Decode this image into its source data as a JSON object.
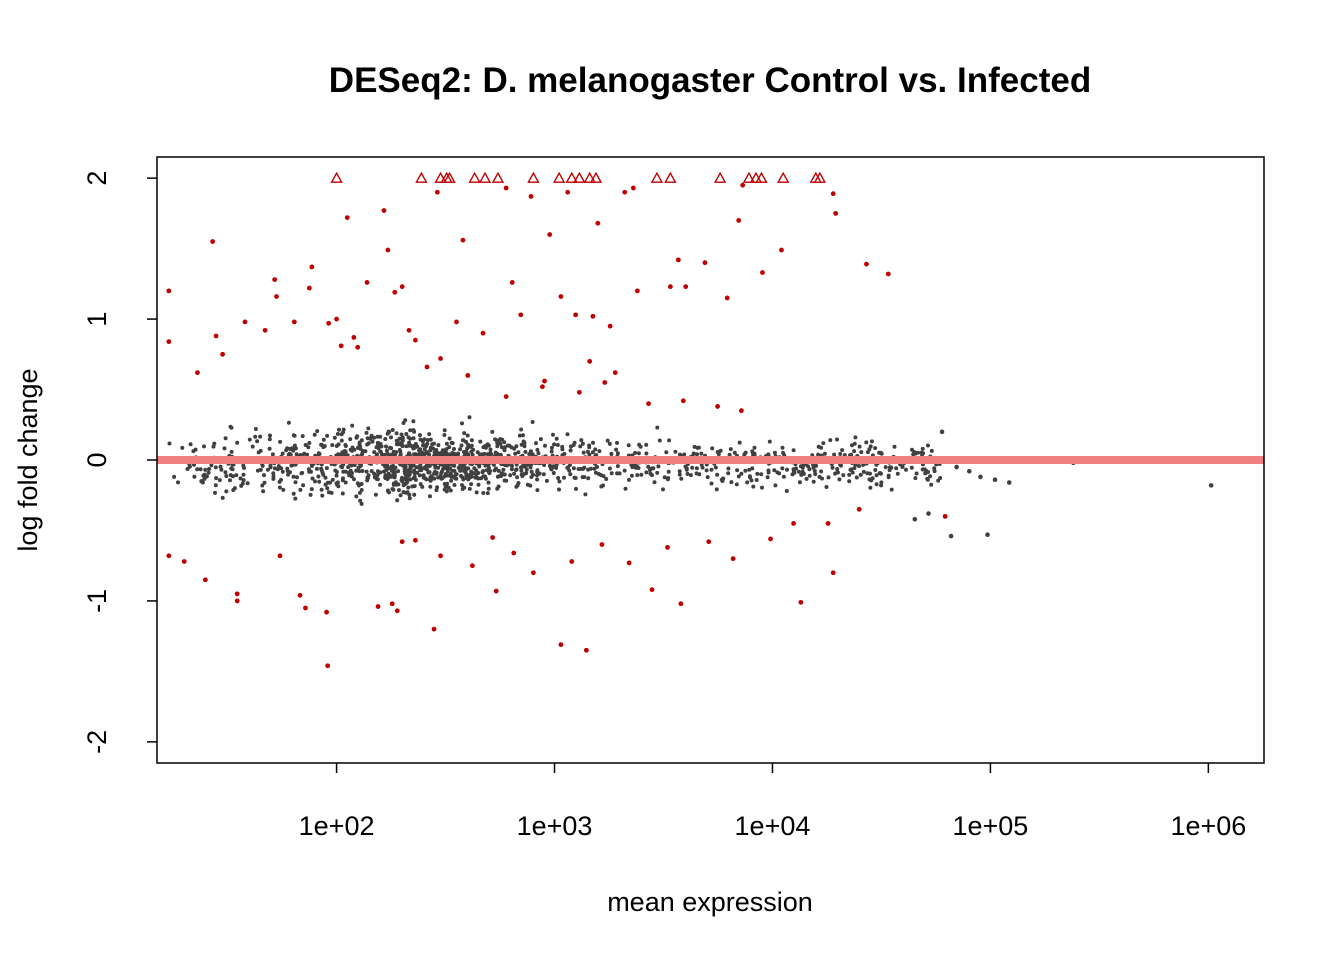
{
  "chart_data": {
    "type": "scatter",
    "title": "DESeq2: D. melanogaster Control vs. Infected",
    "xlabel": "mean expression",
    "ylabel": "log fold change",
    "x_scale": "log10",
    "xlim": [
      15,
      1800000
    ],
    "ylim": [
      -2.15,
      2.15
    ],
    "x_ticks": [
      {
        "value": 100,
        "label": "1e+02"
      },
      {
        "value": 1000,
        "label": "1e+03"
      },
      {
        "value": 10000,
        "label": "1e+04"
      },
      {
        "value": 100000,
        "label": "1e+05"
      },
      {
        "value": 1000000,
        "label": "1e+06"
      }
    ],
    "y_ticks": [
      {
        "value": -2,
        "label": "-2"
      },
      {
        "value": -1,
        "label": "-1"
      },
      {
        "value": 0,
        "label": "0"
      },
      {
        "value": 1,
        "label": "1"
      },
      {
        "value": 2,
        "label": "2"
      }
    ],
    "colors": {
      "non_significant": "#404040",
      "significant": "#c00000",
      "reference_line": "#f08080"
    },
    "reference_line": {
      "y": 0
    },
    "nonsignificant_cloud": {
      "description_hidden": true,
      "x_range": [
        17,
        60000
      ],
      "y_spread_max": 0.55,
      "n_points": 10000
    },
    "nonsignificant_outliers": [
      {
        "x": 60000,
        "y": 0.2
      },
      {
        "x": 70000,
        "y": -0.05
      },
      {
        "x": 80000,
        "y": -0.08
      },
      {
        "x": 90000,
        "y": -0.12
      },
      {
        "x": 105000,
        "y": -0.14
      },
      {
        "x": 122000,
        "y": -0.16
      },
      {
        "x": 66000,
        "y": -0.54
      },
      {
        "x": 97000,
        "y": -0.53
      },
      {
        "x": 240000,
        "y": -0.02
      },
      {
        "x": 1030000,
        "y": -0.18
      },
      {
        "x": 45000,
        "y": -0.42
      },
      {
        "x": 52000,
        "y": -0.38
      }
    ],
    "significant_points": [
      {
        "x": 17,
        "y": 1.2
      },
      {
        "x": 17,
        "y": 0.84
      },
      {
        "x": 17,
        "y": -0.68
      },
      {
        "x": 20,
        "y": -0.72
      },
      {
        "x": 23,
        "y": 0.62
      },
      {
        "x": 25,
        "y": -0.85
      },
      {
        "x": 27,
        "y": 1.55
      },
      {
        "x": 28,
        "y": 0.88
      },
      {
        "x": 30,
        "y": 0.75
      },
      {
        "x": 35,
        "y": -0.95
      },
      {
        "x": 35,
        "y": -1.0
      },
      {
        "x": 38,
        "y": 0.98
      },
      {
        "x": 47,
        "y": 0.92
      },
      {
        "x": 52,
        "y": 1.28
      },
      {
        "x": 53,
        "y": 1.16
      },
      {
        "x": 55,
        "y": -0.68
      },
      {
        "x": 64,
        "y": 0.98
      },
      {
        "x": 68,
        "y": -0.96
      },
      {
        "x": 72,
        "y": -1.05
      },
      {
        "x": 75,
        "y": 1.22
      },
      {
        "x": 77,
        "y": 1.37
      },
      {
        "x": 90,
        "y": -1.08
      },
      {
        "x": 91,
        "y": -1.46
      },
      {
        "x": 92,
        "y": 0.97
      },
      {
        "x": 100,
        "y": 1.0
      },
      {
        "x": 105,
        "y": 0.81
      },
      {
        "x": 112,
        "y": 1.72
      },
      {
        "x": 120,
        "y": 0.87
      },
      {
        "x": 125,
        "y": 0.8
      },
      {
        "x": 138,
        "y": 1.26
      },
      {
        "x": 155,
        "y": -1.04
      },
      {
        "x": 165,
        "y": 1.77
      },
      {
        "x": 172,
        "y": 1.49
      },
      {
        "x": 180,
        "y": -1.02
      },
      {
        "x": 185,
        "y": 1.19
      },
      {
        "x": 190,
        "y": -1.07
      },
      {
        "x": 200,
        "y": 1.23
      },
      {
        "x": 215,
        "y": 0.92
      },
      {
        "x": 230,
        "y": 0.85
      },
      {
        "x": 280,
        "y": -1.2
      },
      {
        "x": 290,
        "y": 1.9
      },
      {
        "x": 300,
        "y": 0.72
      },
      {
        "x": 355,
        "y": 0.98
      },
      {
        "x": 380,
        "y": 1.56
      },
      {
        "x": 470,
        "y": 0.9
      },
      {
        "x": 540,
        "y": -0.93
      },
      {
        "x": 600,
        "y": 1.93
      },
      {
        "x": 640,
        "y": 1.26
      },
      {
        "x": 700,
        "y": 1.03
      },
      {
        "x": 780,
        "y": 1.87
      },
      {
        "x": 900,
        "y": 0.56
      },
      {
        "x": 950,
        "y": 1.6
      },
      {
        "x": 1070,
        "y": -1.31
      },
      {
        "x": 1070,
        "y": 1.16
      },
      {
        "x": 1150,
        "y": 1.9
      },
      {
        "x": 1250,
        "y": 1.03
      },
      {
        "x": 1400,
        "y": -1.35
      },
      {
        "x": 1500,
        "y": 1.02
      },
      {
        "x": 1580,
        "y": 1.68
      },
      {
        "x": 1800,
        "y": 0.95
      },
      {
        "x": 2100,
        "y": 1.9
      },
      {
        "x": 2300,
        "y": 1.93
      },
      {
        "x": 2400,
        "y": 1.2
      },
      {
        "x": 2800,
        "y": -0.92
      },
      {
        "x": 3400,
        "y": 1.23
      },
      {
        "x": 3700,
        "y": 1.42
      },
      {
        "x": 3800,
        "y": -1.02
      },
      {
        "x": 4000,
        "y": 1.23
      },
      {
        "x": 4900,
        "y": 1.4
      },
      {
        "x": 6200,
        "y": 1.15
      },
      {
        "x": 7000,
        "y": 1.7
      },
      {
        "x": 7300,
        "y": 1.95
      },
      {
        "x": 9000,
        "y": 1.33
      },
      {
        "x": 11000,
        "y": 1.49
      },
      {
        "x": 13500,
        "y": -1.01
      },
      {
        "x": 19000,
        "y": 1.89
      },
      {
        "x": 19500,
        "y": 1.75
      },
      {
        "x": 19000,
        "y": -0.8
      },
      {
        "x": 27000,
        "y": 1.39
      },
      {
        "x": 34000,
        "y": 1.32
      },
      {
        "x": 62000,
        "y": -0.4
      },
      {
        "x": 25000,
        "y": -0.35
      },
      {
        "x": 18000,
        "y": -0.45
      },
      {
        "x": 200,
        "y": -0.58
      },
      {
        "x": 230,
        "y": -0.57
      },
      {
        "x": 300,
        "y": -0.68
      },
      {
        "x": 420,
        "y": -0.75
      },
      {
        "x": 520,
        "y": -0.55
      },
      {
        "x": 650,
        "y": -0.66
      },
      {
        "x": 800,
        "y": -0.8
      },
      {
        "x": 1200,
        "y": -0.72
      },
      {
        "x": 1650,
        "y": -0.6
      },
      {
        "x": 2200,
        "y": -0.73
      },
      {
        "x": 3300,
        "y": -0.62
      },
      {
        "x": 5100,
        "y": -0.58
      },
      {
        "x": 6600,
        "y": -0.7
      },
      {
        "x": 9800,
        "y": -0.56
      },
      {
        "x": 12500,
        "y": -0.45
      },
      {
        "x": 600,
        "y": 0.45
      },
      {
        "x": 880,
        "y": 0.52
      },
      {
        "x": 1300,
        "y": 0.48
      },
      {
        "x": 1700,
        "y": 0.55
      },
      {
        "x": 2700,
        "y": 0.4
      },
      {
        "x": 3900,
        "y": 0.42
      },
      {
        "x": 5600,
        "y": 0.38
      },
      {
        "x": 7200,
        "y": 0.35
      },
      {
        "x": 400,
        "y": 0.6
      },
      {
        "x": 260,
        "y": 0.66
      },
      {
        "x": 1900,
        "y": 0.62
      },
      {
        "x": 1450,
        "y": 0.7
      }
    ],
    "capped_points": [
      {
        "x": 100,
        "y": 2
      },
      {
        "x": 245,
        "y": 2
      },
      {
        "x": 300,
        "y": 2
      },
      {
        "x": 320,
        "y": 2
      },
      {
        "x": 330,
        "y": 2
      },
      {
        "x": 430,
        "y": 2
      },
      {
        "x": 480,
        "y": 2
      },
      {
        "x": 550,
        "y": 2
      },
      {
        "x": 800,
        "y": 2
      },
      {
        "x": 1050,
        "y": 2
      },
      {
        "x": 1200,
        "y": 2
      },
      {
        "x": 1300,
        "y": 2
      },
      {
        "x": 1450,
        "y": 2
      },
      {
        "x": 1550,
        "y": 2
      },
      {
        "x": 2950,
        "y": 2
      },
      {
        "x": 3400,
        "y": 2
      },
      {
        "x": 5750,
        "y": 2
      },
      {
        "x": 7800,
        "y": 2
      },
      {
        "x": 8400,
        "y": 2
      },
      {
        "x": 8900,
        "y": 2
      },
      {
        "x": 11200,
        "y": 2
      },
      {
        "x": 15800,
        "y": 2
      },
      {
        "x": 16500,
        "y": 2
      }
    ]
  }
}
